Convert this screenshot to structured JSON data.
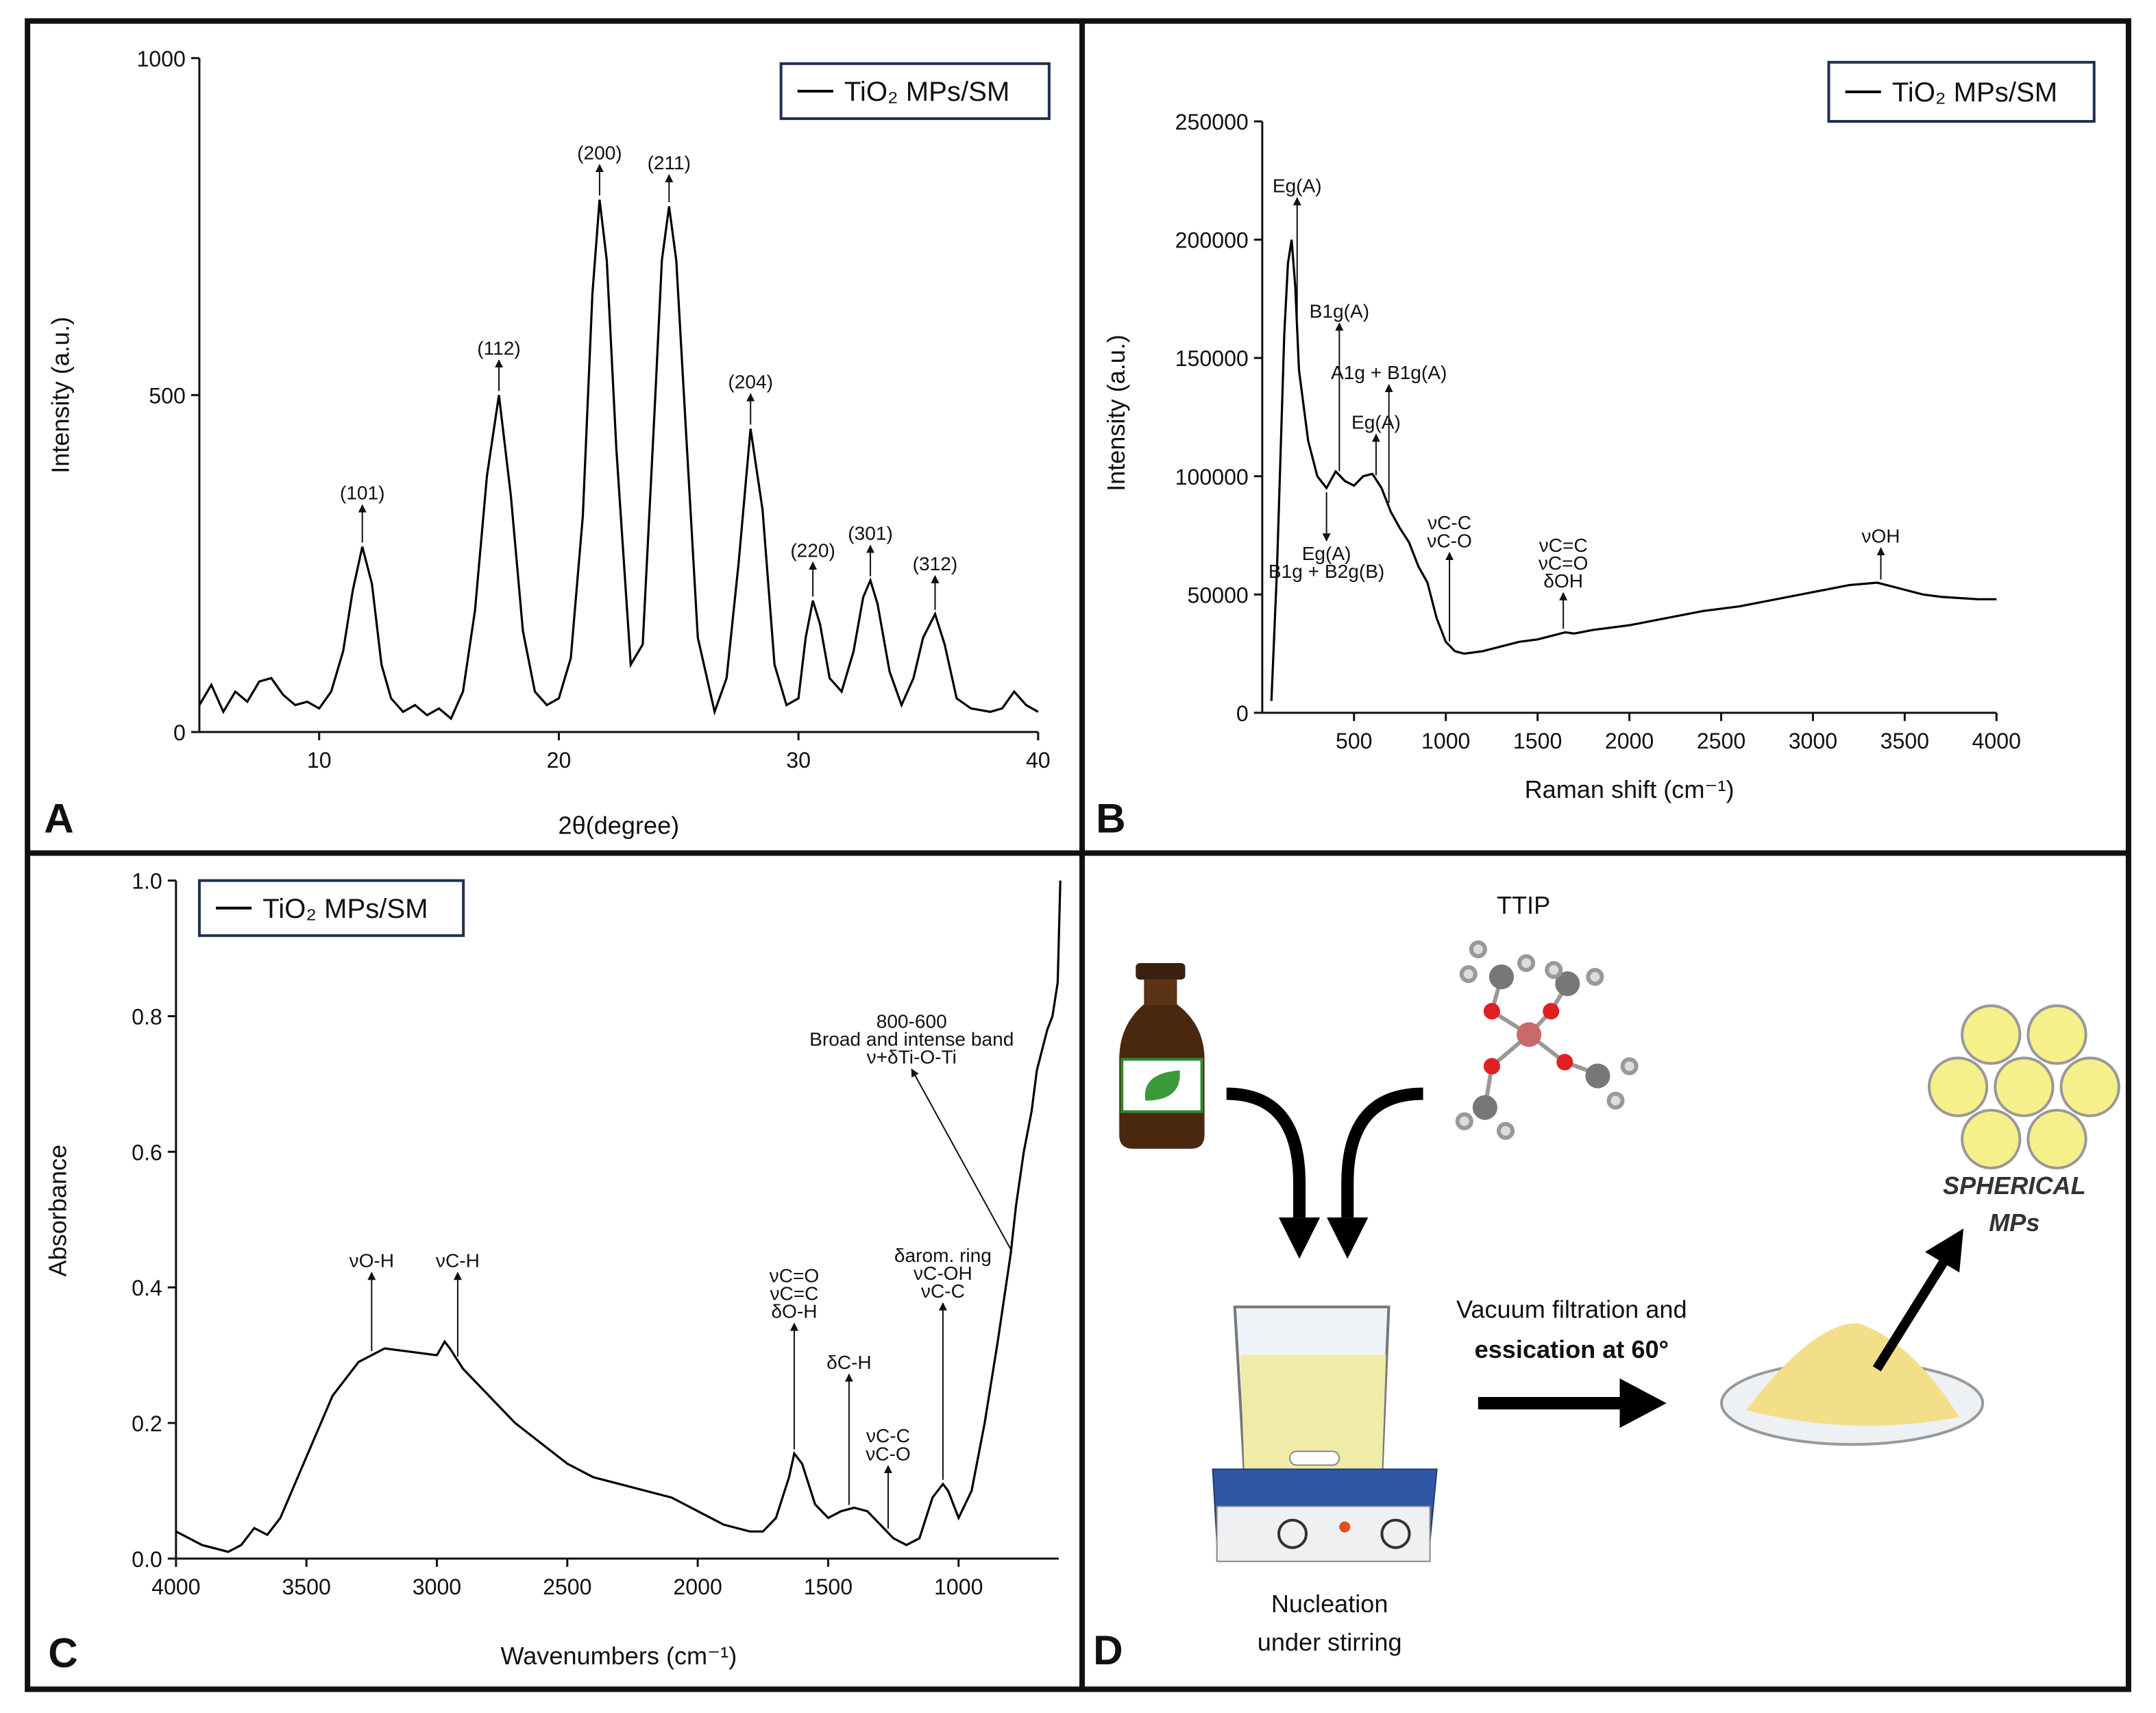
{
  "chart_data": [
    {
      "type": "line",
      "panel_label": "A",
      "xlabel": "2θ(degree)",
      "ylabel": "Intensity (a.u.)",
      "xlim": [
        5,
        40
      ],
      "ylim": [
        0,
        1000
      ],
      "xticks": [
        10,
        20,
        30,
        40
      ],
      "yticks": [
        0,
        500,
        1000
      ],
      "x": [
        5,
        5.5,
        6,
        6.5,
        7,
        7.5,
        8,
        8.5,
        9,
        9.5,
        10,
        10.5,
        11,
        11.4,
        11.8,
        12.2,
        12.6,
        13,
        13.5,
        14,
        14.5,
        15,
        15.5,
        16,
        16.5,
        17,
        17.5,
        18,
        18.5,
        19,
        19.5,
        20,
        20.5,
        21,
        21.4,
        21.7,
        22,
        22.4,
        23,
        23.5,
        24,
        24.3,
        24.6,
        24.9,
        25.3,
        25.8,
        26.5,
        27,
        27.5,
        28,
        28.5,
        29,
        29.5,
        30,
        30.3,
        30.6,
        30.9,
        31.3,
        31.8,
        32.3,
        32.7,
        33,
        33.3,
        33.8,
        34.3,
        34.8,
        35.2,
        35.7,
        36.1,
        36.6,
        37.2,
        38,
        38.5,
        39,
        39.5,
        40
      ],
      "series": [
        {
          "name": "TiO₂ MPs/SM",
          "color": "#000000",
          "values": [
            40,
            70,
            30,
            60,
            45,
            75,
            80,
            55,
            40,
            45,
            35,
            60,
            120,
            210,
            275,
            220,
            100,
            50,
            30,
            40,
            25,
            35,
            20,
            60,
            180,
            380,
            500,
            350,
            150,
            60,
            40,
            50,
            110,
            320,
            650,
            790,
            700,
            420,
            100,
            130,
            480,
            700,
            780,
            700,
            450,
            140,
            30,
            80,
            250,
            450,
            330,
            100,
            40,
            50,
            140,
            195,
            160,
            80,
            60,
            120,
            200,
            225,
            190,
            90,
            40,
            80,
            140,
            175,
            130,
            50,
            35,
            30,
            35,
            60,
            40,
            30
          ]
        }
      ],
      "annotations": [
        {
          "lines": [
            "(101)"
          ],
          "x": 11.8,
          "y": 345
        },
        {
          "lines": [
            "(112)"
          ],
          "x": 17.5,
          "y": 560
        },
        {
          "lines": [
            "(200)"
          ],
          "x": 21.7,
          "y": 850
        },
        {
          "lines": [
            "(211)"
          ],
          "x": 24.6,
          "y": 835
        },
        {
          "lines": [
            "(204)"
          ],
          "x": 28,
          "y": 510
        },
        {
          "lines": [
            "(220)"
          ],
          "x": 30.6,
          "y": 260
        },
        {
          "lines": [
            "(301)"
          ],
          "x": 33,
          "y": 285
        },
        {
          "lines": [
            "(312)"
          ],
          "x": 35.7,
          "y": 240
        }
      ]
    },
    {
      "type": "line",
      "panel_label": "B",
      "xlabel": "Raman shift (cm⁻¹)",
      "ylabel": "Intensity (a.u.)",
      "xlim": [
        0,
        4000
      ],
      "ylim": [
        0,
        250000
      ],
      "xticks": [
        500,
        1000,
        1500,
        2000,
        2500,
        3000,
        3500,
        4000
      ],
      "yticks": [
        0,
        50000,
        100000,
        150000,
        200000,
        250000
      ],
      "x": [
        50,
        80,
        100,
        120,
        140,
        160,
        180,
        200,
        250,
        300,
        350,
        400,
        450,
        500,
        550,
        600,
        650,
        700,
        750,
        800,
        850,
        900,
        950,
        1000,
        1050,
        1100,
        1200,
        1300,
        1400,
        1500,
        1600,
        1650,
        1700,
        1800,
        2000,
        2200,
        2400,
        2600,
        2800,
        3000,
        3200,
        3350,
        3400,
        3500,
        3600,
        3700,
        3800,
        3900,
        4000
      ],
      "series": [
        {
          "name": "TiO₂ MPs/SM",
          "color": "#000000",
          "values": [
            5000,
            60000,
            110000,
            160000,
            190000,
            200000,
            180000,
            145000,
            115000,
            100000,
            95000,
            102000,
            98000,
            96000,
            100000,
            101000,
            95000,
            85000,
            78000,
            72000,
            62000,
            55000,
            40000,
            30000,
            26000,
            25000,
            26000,
            28000,
            30000,
            31000,
            33000,
            34000,
            33500,
            35000,
            37000,
            40000,
            43000,
            45000,
            48000,
            51000,
            54000,
            55000,
            54000,
            52000,
            50000,
            49000,
            48500,
            48000,
            48000
          ]
        }
      ],
      "annotations": [
        {
          "lines": [
            "Eg(A)"
          ],
          "x": 190,
          "y": 220000
        },
        {
          "lines": [
            "B1g(A)"
          ],
          "x": 420,
          "y": 167000
        },
        {
          "lines": [
            "A1g + B1g(A)"
          ],
          "x": 690,
          "y": 141000
        },
        {
          "lines": [
            "Eg(A)"
          ],
          "x": 620,
          "y": 120000
        },
        {
          "lines": [
            "Eg(A)",
            "B1g + B2g(B)"
          ],
          "x": 350,
          "y": 57000
        },
        {
          "lines": [
            "νC-C",
            "νC-O"
          ],
          "x": 1020,
          "y": 70000
        },
        {
          "lines": [
            "νC=C",
            "νC=O",
            "δOH"
          ],
          "x": 1640,
          "y": 53000
        },
        {
          "lines": [
            "νOH"
          ],
          "x": 3370,
          "y": 72000
        }
      ]
    },
    {
      "type": "line",
      "panel_label": "C",
      "xlabel": "Wavenumbers (cm⁻¹)",
      "ylabel": "Absorbance",
      "xlim": [
        4000,
        616
      ],
      "ylim": [
        0,
        1
      ],
      "xticks": [
        4000,
        3500,
        3000,
        2500,
        2000,
        1500,
        1000
      ],
      "yticks": [
        {
          "value": 0,
          "label": "0.0"
        },
        0.2,
        0.4,
        0.6,
        0.8,
        {
          "value": 1,
          "label": "1.0"
        }
      ],
      "x": [
        4000,
        3900,
        3800,
        3750,
        3700,
        3650,
        3600,
        3500,
        3400,
        3300,
        3200,
        3100,
        3000,
        2970,
        2950,
        2900,
        2800,
        2700,
        2600,
        2500,
        2400,
        2300,
        2200,
        2100,
        2000,
        1900,
        1800,
        1750,
        1700,
        1650,
        1630,
        1600,
        1550,
        1500,
        1450,
        1400,
        1350,
        1300,
        1250,
        1200,
        1150,
        1100,
        1060,
        1040,
        1000,
        950,
        900,
        850,
        800,
        780,
        750,
        720,
        700,
        680,
        660,
        640,
        620,
        610
      ],
      "series": [
        {
          "name": "TiO₂ MPs/SM",
          "color": "#000000",
          "values": [
            0.04,
            0.02,
            0.01,
            0.02,
            0.045,
            0.035,
            0.06,
            0.15,
            0.24,
            0.29,
            0.31,
            0.305,
            0.3,
            0.32,
            0.31,
            0.28,
            0.24,
            0.2,
            0.17,
            0.14,
            0.12,
            0.11,
            0.1,
            0.09,
            0.07,
            0.05,
            0.04,
            0.04,
            0.06,
            0.12,
            0.155,
            0.14,
            0.08,
            0.06,
            0.07,
            0.075,
            0.07,
            0.05,
            0.03,
            0.02,
            0.03,
            0.09,
            0.11,
            0.1,
            0.06,
            0.1,
            0.2,
            0.32,
            0.45,
            0.52,
            0.6,
            0.66,
            0.72,
            0.75,
            0.78,
            0.8,
            0.85,
            1.0
          ]
        }
      ],
      "annotations": [
        {
          "lines": [
            "νO-H"
          ],
          "x": 3250,
          "y": 0.43
        },
        {
          "lines": [
            "νC-H"
          ],
          "x": 2920,
          "y": 0.43
        },
        {
          "lines": [
            "νC=O",
            "νC=C",
            "δO-H"
          ],
          "x": 1630,
          "y": 0.355
        },
        {
          "lines": [
            "δC-H"
          ],
          "x": 1420,
          "y": 0.28
        },
        {
          "lines": [
            "νC-C",
            "νC-O"
          ],
          "x": 1270,
          "y": 0.145
        },
        {
          "lines": [
            "δarom. ring",
            "νC-OH",
            "νC-C"
          ],
          "x": 1060,
          "y": 0.385
        },
        {
          "lines": [
            "800-600",
            "Broad and intense band",
            "ν+δTi-O-Ti"
          ],
          "x": 1180,
          "y": 0.73,
          "target": 800
        }
      ]
    }
  ],
  "diagram": {
    "panel_label": "D",
    "reagent": "TTIP",
    "step1": [
      "Nucleation",
      "under stirring"
    ],
    "step2": [
      "Vacuum filtration and",
      "essication at 60°"
    ],
    "product": [
      "SPHERICAL",
      "MPs"
    ]
  }
}
